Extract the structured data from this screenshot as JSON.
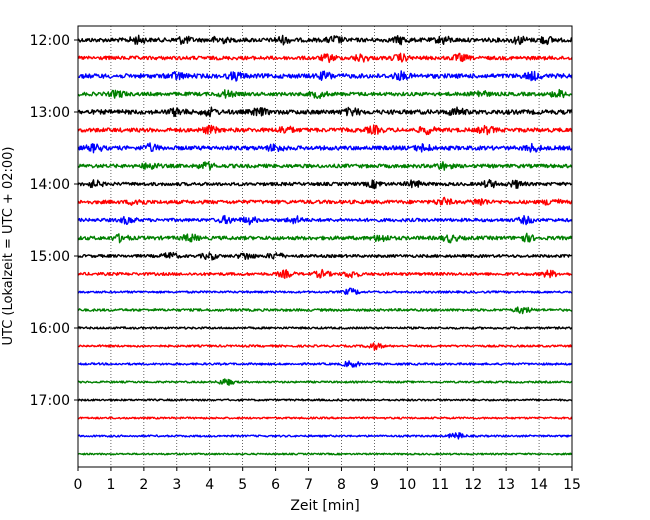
{
  "chart_data": {
    "type": "line",
    "title": "",
    "xlabel": "Zeit  [min]",
    "ylabel": "UTC (Lokalzeit = UTC + 02:00)",
    "xlim": [
      0,
      15
    ],
    "x_ticks": [
      0,
      1,
      2,
      3,
      4,
      5,
      6,
      7,
      8,
      9,
      10,
      11,
      12,
      13,
      14,
      15
    ],
    "y_tick_labels": [
      "12:00",
      "13:00",
      "14:00",
      "15:00",
      "16:00",
      "17:00"
    ],
    "grid": "vertical dotted at each minute",
    "legend": "none",
    "trace_colors": [
      "#000000",
      "#ff0000",
      "#0000ff",
      "#008000"
    ],
    "series": [
      {
        "start": "12:00",
        "color": "#000000",
        "events_min": [
          1.8,
          3.2,
          4.3,
          6.2,
          7.8,
          9.8,
          11.1,
          13.4,
          14.2
        ],
        "noise": 2.0
      },
      {
        "start": "12:15",
        "color": "#ff0000",
        "events_min": [
          7.6,
          8.6,
          9.8,
          11.6
        ],
        "noise": 1.8
      },
      {
        "start": "12:30",
        "color": "#0000ff",
        "events_min": [
          3.0,
          4.8,
          7.5,
          9.8,
          13.8
        ],
        "noise": 2.2
      },
      {
        "start": "12:45",
        "color": "#008000",
        "events_min": [
          1.2,
          4.5,
          7.3,
          12.2,
          14.6
        ],
        "noise": 1.8
      },
      {
        "start": "13:00",
        "color": "#000000",
        "events_min": [
          3.0,
          4.0,
          5.5,
          8.3,
          11.5
        ],
        "noise": 2.2
      },
      {
        "start": "13:15",
        "color": "#ff0000",
        "events_min": [
          4.0,
          6.3,
          9.0,
          10.6,
          12.4
        ],
        "noise": 2.0
      },
      {
        "start": "13:30",
        "color": "#0000ff",
        "events_min": [
          0.5,
          2.2,
          6.0,
          10.5,
          13.8
        ],
        "noise": 2.0
      },
      {
        "start": "13:45",
        "color": "#008000",
        "events_min": [
          2.2,
          3.9,
          11.1
        ],
        "noise": 1.8
      },
      {
        "start": "14:00",
        "color": "#000000",
        "events_min": [
          0.5,
          9.0,
          10.2,
          12.5,
          13.3
        ],
        "noise": 1.6
      },
      {
        "start": "14:15",
        "color": "#ff0000",
        "events_min": [
          1.8,
          11.1,
          12.2,
          14.4
        ],
        "noise": 1.8
      },
      {
        "start": "14:30",
        "color": "#0000ff",
        "events_min": [
          1.5,
          4.5,
          5.2,
          6.6,
          13.6
        ],
        "noise": 1.6
      },
      {
        "start": "14:45",
        "color": "#008000",
        "events_min": [
          1.3,
          3.4,
          9.2,
          11.3,
          13.6
        ],
        "noise": 1.8
      },
      {
        "start": "15:00",
        "color": "#000000",
        "events_min": [
          2.8,
          4.0,
          5.1,
          6.0
        ],
        "noise": 1.4
      },
      {
        "start": "15:15",
        "color": "#ff0000",
        "events_min": [
          6.3,
          7.4,
          8.3,
          14.3
        ],
        "noise": 1.4
      },
      {
        "start": "15:30",
        "color": "#0000ff",
        "events_min": [
          8.3
        ],
        "noise": 1.0
      },
      {
        "start": "15:45",
        "color": "#008000",
        "events_min": [
          13.5
        ],
        "noise": 1.2
      },
      {
        "start": "16:00",
        "color": "#000000",
        "events_min": [],
        "noise": 1.0
      },
      {
        "start": "16:15",
        "color": "#ff0000",
        "events_min": [
          9.0
        ],
        "noise": 1.0
      },
      {
        "start": "16:30",
        "color": "#0000ff",
        "events_min": [
          8.3
        ],
        "noise": 1.0
      },
      {
        "start": "16:45",
        "color": "#008000",
        "events_min": [
          4.5
        ],
        "noise": 0.9
      },
      {
        "start": "17:00",
        "color": "#000000",
        "events_min": [],
        "noise": 0.9
      },
      {
        "start": "17:15",
        "color": "#ff0000",
        "events_min": [],
        "noise": 0.9
      },
      {
        "start": "17:30",
        "color": "#0000ff",
        "events_min": [
          11.5
        ],
        "noise": 0.9
      },
      {
        "start": "17:45",
        "color": "#008000",
        "events_min": [],
        "noise": 0.8
      }
    ]
  }
}
